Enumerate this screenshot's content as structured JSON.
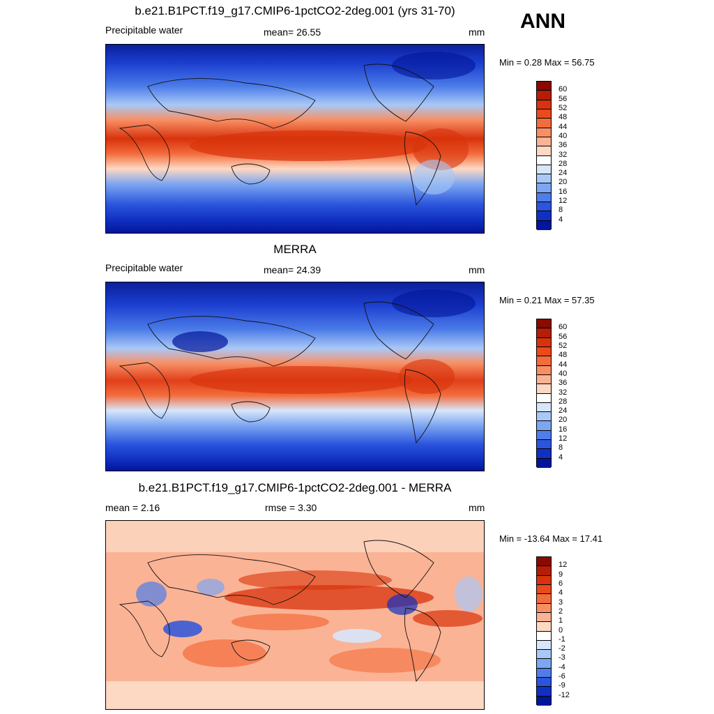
{
  "season": "ANN",
  "panels": [
    {
      "title": "b.e21.B1PCT.f19_g17.CMIP6-1pctCO2-2deg.001 (yrs 31-70)",
      "left_text": "Precipitable water",
      "center_text": "mean=  26.55",
      "units": "mm",
      "minmax": "Min =   0.28 Max =  56.75",
      "colorbar": {
        "labels": [
          "60",
          "56",
          "52",
          "48",
          "44",
          "40",
          "36",
          "32",
          "28",
          "24",
          "20",
          "16",
          "12",
          "8",
          "4"
        ],
        "colors": [
          "#8a0a00",
          "#b51d06",
          "#d8330c",
          "#ea4a1c",
          "#f36c3c",
          "#f88f64",
          "#fbb395",
          "#fdd8c3",
          "#ffffff",
          "#d7e6fb",
          "#a9c8f7",
          "#7da6f1",
          "#4f7eea",
          "#2a55dc",
          "#1130c2",
          "#01169a"
        ]
      }
    },
    {
      "title": "MERRA",
      "left_text": "Precipitable water",
      "center_text": "mean=  24.39",
      "units": "mm",
      "minmax": "Min =   0.21 Max =  57.35",
      "colorbar": {
        "labels": [
          "60",
          "56",
          "52",
          "48",
          "44",
          "40",
          "36",
          "32",
          "28",
          "24",
          "20",
          "16",
          "12",
          "8",
          "4"
        ],
        "colors": [
          "#8a0a00",
          "#b51d06",
          "#d8330c",
          "#ea4a1c",
          "#f36c3c",
          "#f88f64",
          "#fbb395",
          "#fdd8c3",
          "#ffffff",
          "#d7e6fb",
          "#a9c8f7",
          "#7da6f1",
          "#4f7eea",
          "#2a55dc",
          "#1130c2",
          "#01169a"
        ]
      }
    },
    {
      "title": "b.e21.B1PCT.f19_g17.CMIP6-1pctCO2-2deg.001 - MERRA",
      "left_text": "mean =   2.16",
      "center_text": "rmse =   3.30",
      "units": "mm",
      "minmax": "Min = -13.64 Max =  17.41",
      "colorbar": {
        "labels": [
          "12",
          "9",
          "6",
          "4",
          "3",
          "2",
          "1",
          "0",
          "-1",
          "-2",
          "-3",
          "-4",
          "-6",
          "-9",
          "-12"
        ],
        "colors": [
          "#8a0a00",
          "#b51d06",
          "#d8330c",
          "#ea4a1c",
          "#f36c3c",
          "#f88f64",
          "#fbb395",
          "#fdd8c3",
          "#ffffff",
          "#d7e6fb",
          "#a9c8f7",
          "#7da6f1",
          "#4f7eea",
          "#2a55dc",
          "#1130c2",
          "#01169a"
        ]
      }
    }
  ]
}
